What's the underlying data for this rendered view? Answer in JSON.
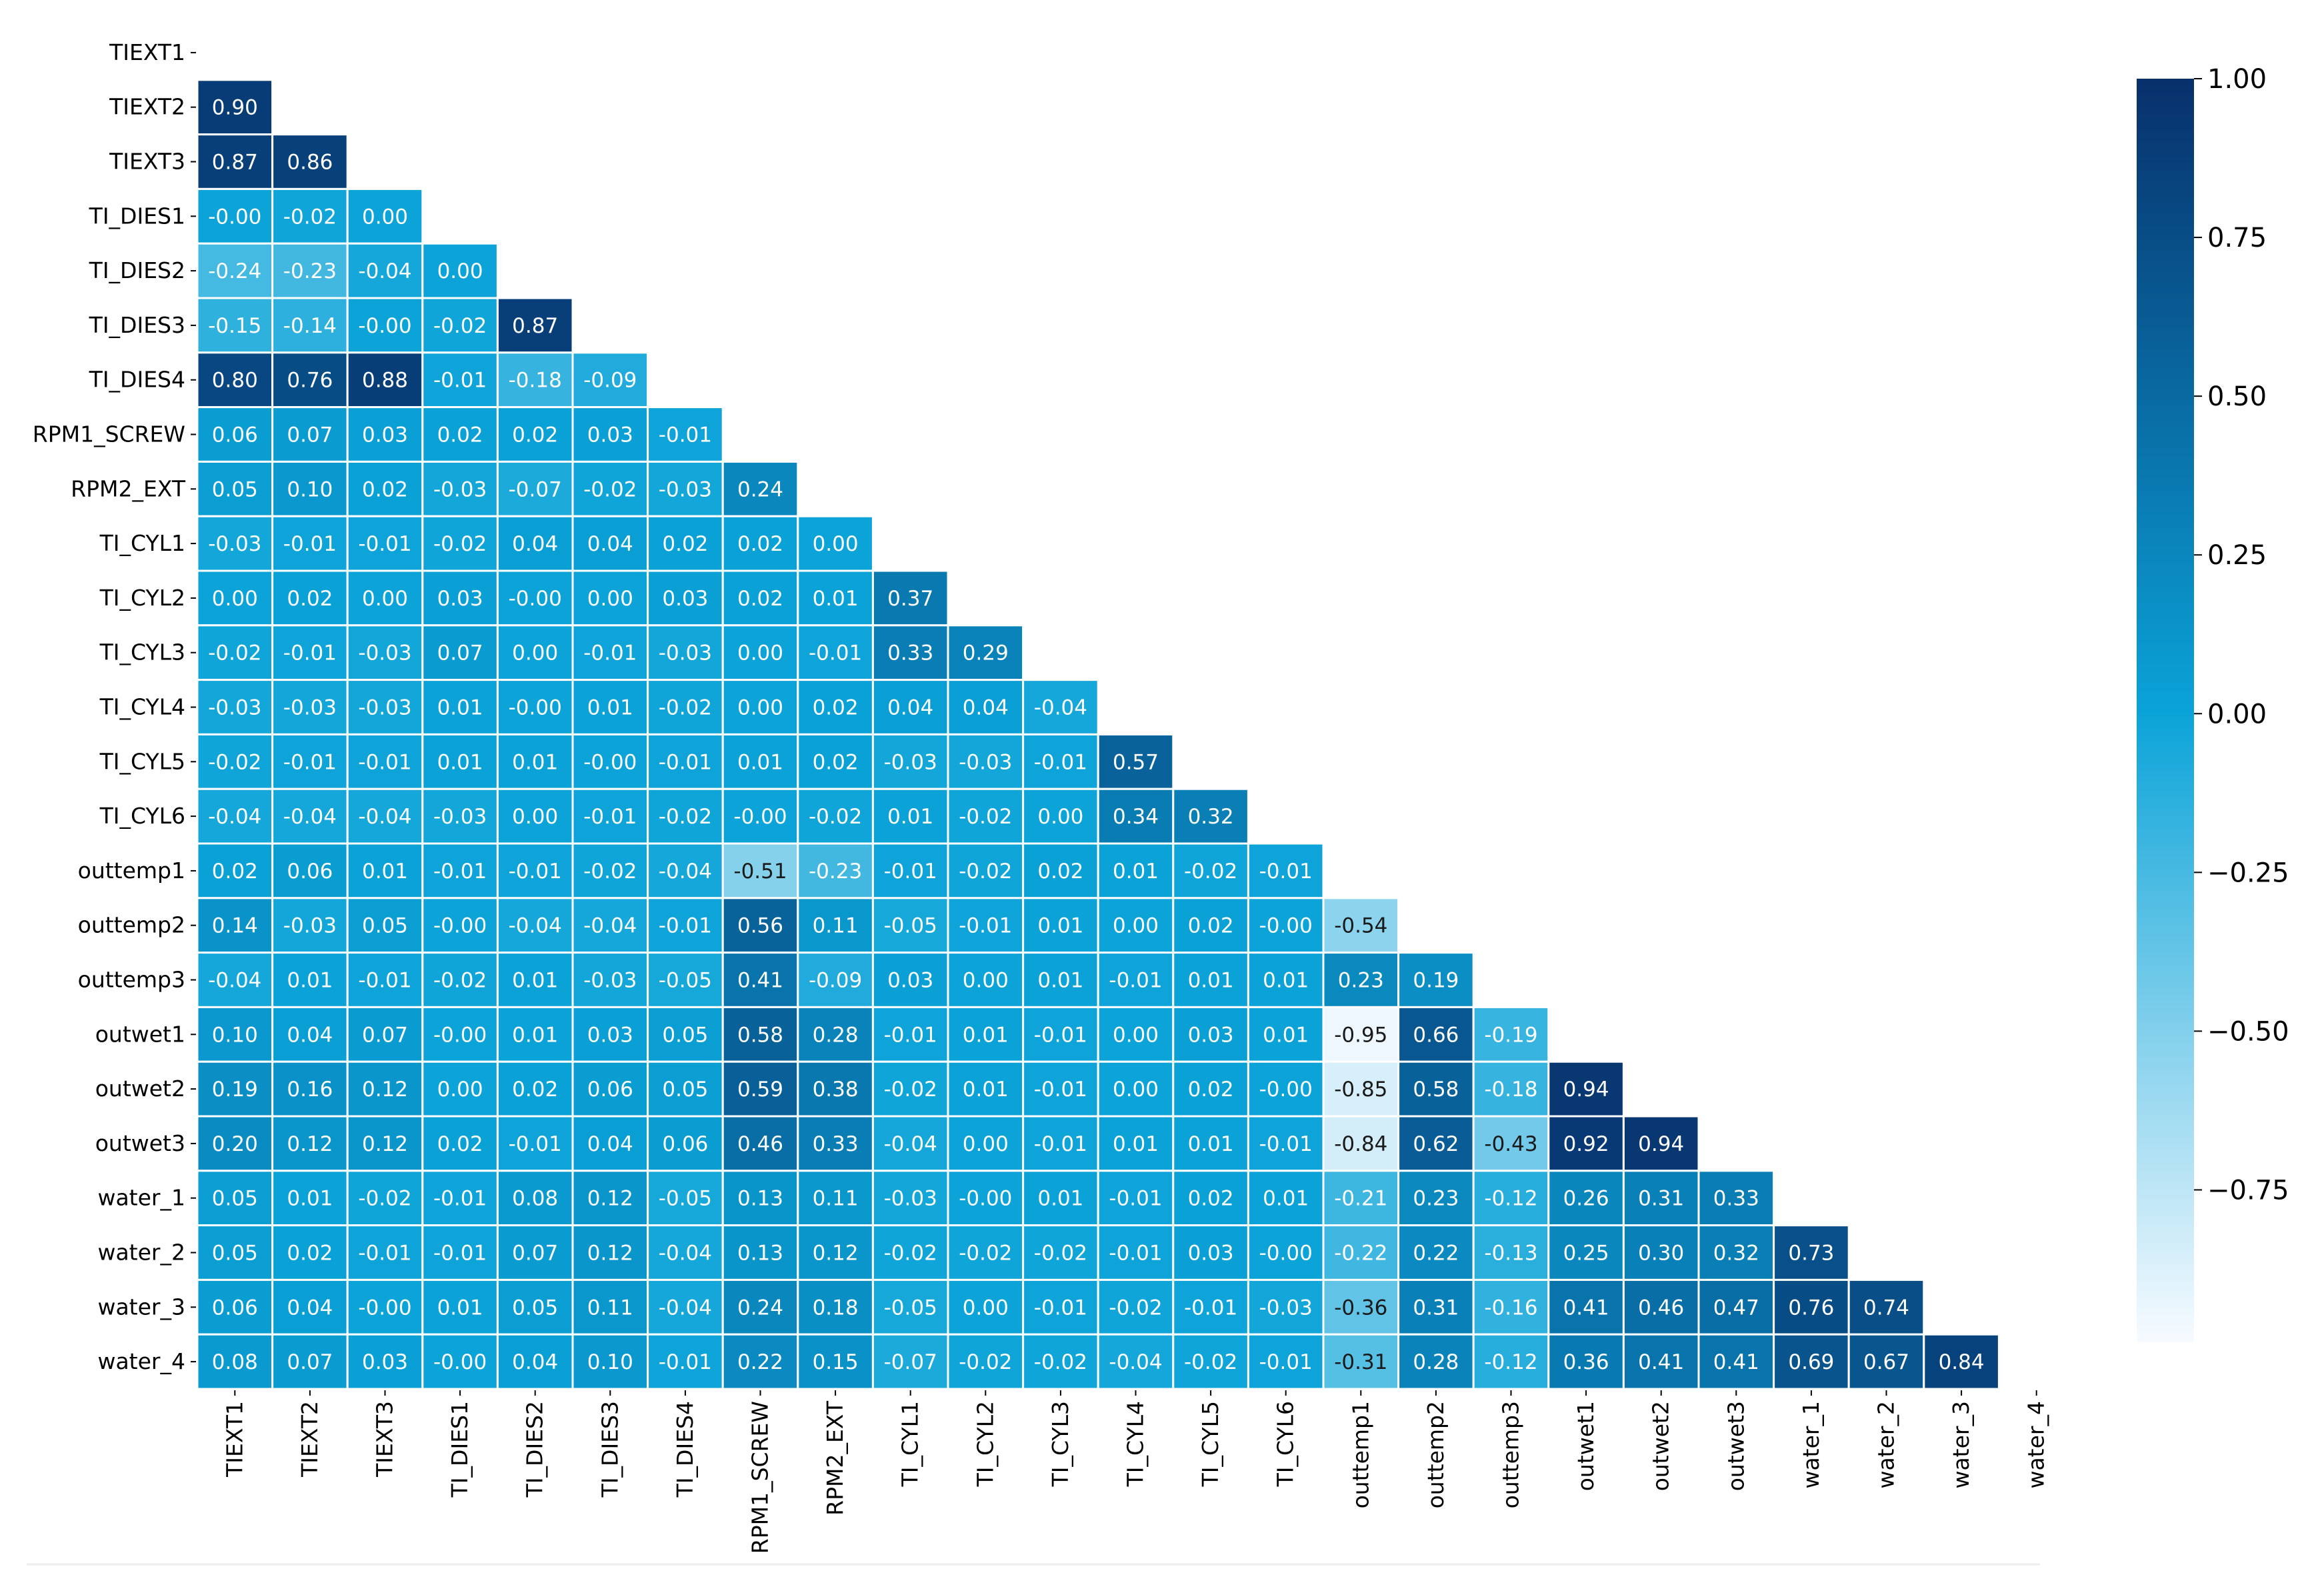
{
  "chart_data": {
    "type": "heatmap",
    "variables": [
      "TIEXT1",
      "TIEXT2",
      "TIEXT3",
      "TI_DIES1",
      "TI_DIES2",
      "TI_DIES3",
      "TI_DIES4",
      "RPM1_SCREW",
      "RPM2_EXT",
      "TI_CYL1",
      "TI_CYL2",
      "TI_CYL3",
      "TI_CYL4",
      "TI_CYL5",
      "TI_CYL6",
      "outtemp1",
      "outtemp2",
      "outtemp3",
      "outwet1",
      "outwet2",
      "outwet3",
      "water_1",
      "water_2",
      "water_3",
      "water_4"
    ],
    "mask": "upper-triangle-including-diagonal",
    "value_format": "2 decimals",
    "matrix_lower": [
      [],
      [
        "0.90"
      ],
      [
        "0.87",
        "0.86"
      ],
      [
        "-0.00",
        "-0.02",
        "0.00"
      ],
      [
        "-0.24",
        "-0.23",
        "-0.04",
        "0.00"
      ],
      [
        "-0.15",
        "-0.14",
        "-0.00",
        "-0.02",
        "0.87"
      ],
      [
        "0.80",
        "0.76",
        "0.88",
        "-0.01",
        "-0.18",
        "-0.09"
      ],
      [
        "0.06",
        "0.07",
        "0.03",
        "0.02",
        "0.02",
        "0.03",
        "-0.01"
      ],
      [
        "0.05",
        "0.10",
        "0.02",
        "-0.03",
        "-0.07",
        "-0.02",
        "-0.03",
        "0.24"
      ],
      [
        "-0.03",
        "-0.01",
        "-0.01",
        "-0.02",
        "0.04",
        "0.04",
        "0.02",
        "0.02",
        "0.00"
      ],
      [
        "0.00",
        "0.02",
        "0.00",
        "0.03",
        "-0.00",
        "0.00",
        "0.03",
        "0.02",
        "0.01",
        "0.37"
      ],
      [
        "-0.02",
        "-0.01",
        "-0.03",
        "0.07",
        "0.00",
        "-0.01",
        "-0.03",
        "0.00",
        "-0.01",
        "0.33",
        "0.29"
      ],
      [
        "-0.03",
        "-0.03",
        "-0.03",
        "0.01",
        "-0.00",
        "0.01",
        "-0.02",
        "0.00",
        "0.02",
        "0.04",
        "0.04",
        "-0.04"
      ],
      [
        "-0.02",
        "-0.01",
        "-0.01",
        "0.01",
        "0.01",
        "-0.00",
        "-0.01",
        "0.01",
        "0.02",
        "-0.03",
        "-0.03",
        "-0.01",
        "0.57"
      ],
      [
        "-0.04",
        "-0.04",
        "-0.04",
        "-0.03",
        "0.00",
        "-0.01",
        "-0.02",
        "-0.00",
        "-0.02",
        "0.01",
        "-0.02",
        "0.00",
        "0.34",
        "0.32"
      ],
      [
        "0.02",
        "0.06",
        "0.01",
        "-0.01",
        "-0.01",
        "-0.02",
        "-0.04",
        "-0.51",
        "-0.23",
        "-0.01",
        "-0.02",
        "0.02",
        "0.01",
        "-0.02",
        "-0.01"
      ],
      [
        "0.14",
        "-0.03",
        "0.05",
        "-0.00",
        "-0.04",
        "-0.04",
        "-0.01",
        "0.56",
        "0.11",
        "-0.05",
        "-0.01",
        "0.01",
        "0.00",
        "0.02",
        "-0.00",
        "-0.54"
      ],
      [
        "-0.04",
        "0.01",
        "-0.01",
        "-0.02",
        "0.01",
        "-0.03",
        "-0.05",
        "0.41",
        "-0.09",
        "0.03",
        "0.00",
        "0.01",
        "-0.01",
        "0.01",
        "0.01",
        "0.23",
        "0.19"
      ],
      [
        "0.10",
        "0.04",
        "0.07",
        "-0.00",
        "0.01",
        "0.03",
        "0.05",
        "0.58",
        "0.28",
        "-0.01",
        "0.01",
        "-0.01",
        "0.00",
        "0.03",
        "0.01",
        "-0.95",
        "0.66",
        "-0.19"
      ],
      [
        "0.19",
        "0.16",
        "0.12",
        "0.00",
        "0.02",
        "0.06",
        "0.05",
        "0.59",
        "0.38",
        "-0.02",
        "0.01",
        "-0.01",
        "0.00",
        "0.02",
        "-0.00",
        "-0.85",
        "0.58",
        "-0.18",
        "0.94"
      ],
      [
        "0.20",
        "0.12",
        "0.12",
        "0.02",
        "-0.01",
        "0.04",
        "0.06",
        "0.46",
        "0.33",
        "-0.04",
        "0.00",
        "-0.01",
        "0.01",
        "0.01",
        "-0.01",
        "-0.84",
        "0.62",
        "-0.43",
        "0.92",
        "0.94"
      ],
      [
        "0.05",
        "0.01",
        "-0.02",
        "-0.01",
        "0.08",
        "0.12",
        "-0.05",
        "0.13",
        "0.11",
        "-0.03",
        "-0.00",
        "0.01",
        "-0.01",
        "0.02",
        "0.01",
        "-0.21",
        "0.23",
        "-0.12",
        "0.26",
        "0.31",
        "0.33"
      ],
      [
        "0.05",
        "0.02",
        "-0.01",
        "-0.01",
        "0.07",
        "0.12",
        "-0.04",
        "0.13",
        "0.12",
        "-0.02",
        "-0.02",
        "-0.02",
        "-0.01",
        "0.03",
        "-0.00",
        "-0.22",
        "0.22",
        "-0.13",
        "0.25",
        "0.30",
        "0.32",
        "0.73"
      ],
      [
        "0.06",
        "0.04",
        "-0.00",
        "0.01",
        "0.05",
        "0.11",
        "-0.04",
        "0.24",
        "0.18",
        "-0.05",
        "0.00",
        "-0.01",
        "-0.02",
        "-0.01",
        "-0.03",
        "-0.36",
        "0.31",
        "-0.16",
        "0.41",
        "0.46",
        "0.47",
        "0.76",
        "0.74"
      ],
      [
        "0.08",
        "0.07",
        "0.03",
        "-0.00",
        "0.04",
        "0.10",
        "-0.01",
        "0.22",
        "0.15",
        "-0.07",
        "-0.02",
        "-0.02",
        "-0.04",
        "-0.02",
        "-0.01",
        "-0.31",
        "0.28",
        "-0.12",
        "0.36",
        "0.41",
        "0.41",
        "0.69",
        "0.67",
        "0.84"
      ]
    ],
    "colorbar": {
      "colormap": "Blues-like",
      "range": [
        -0.99,
        1.0
      ],
      "ticks": [
        1.0,
        0.75,
        0.5,
        0.25,
        0.0,
        -0.25,
        -0.5,
        -0.75
      ],
      "tick_labels": [
        "1.00",
        "0.75",
        "0.50",
        "0.25",
        "0.00",
        "−0.25",
        "−0.50",
        "−0.75"
      ],
      "colors": {
        "low": "#f7fbff",
        "mid": "#0aa3d8",
        "high": "#08306b"
      }
    },
    "title": "",
    "xlabel": "",
    "ylabel": ""
  }
}
